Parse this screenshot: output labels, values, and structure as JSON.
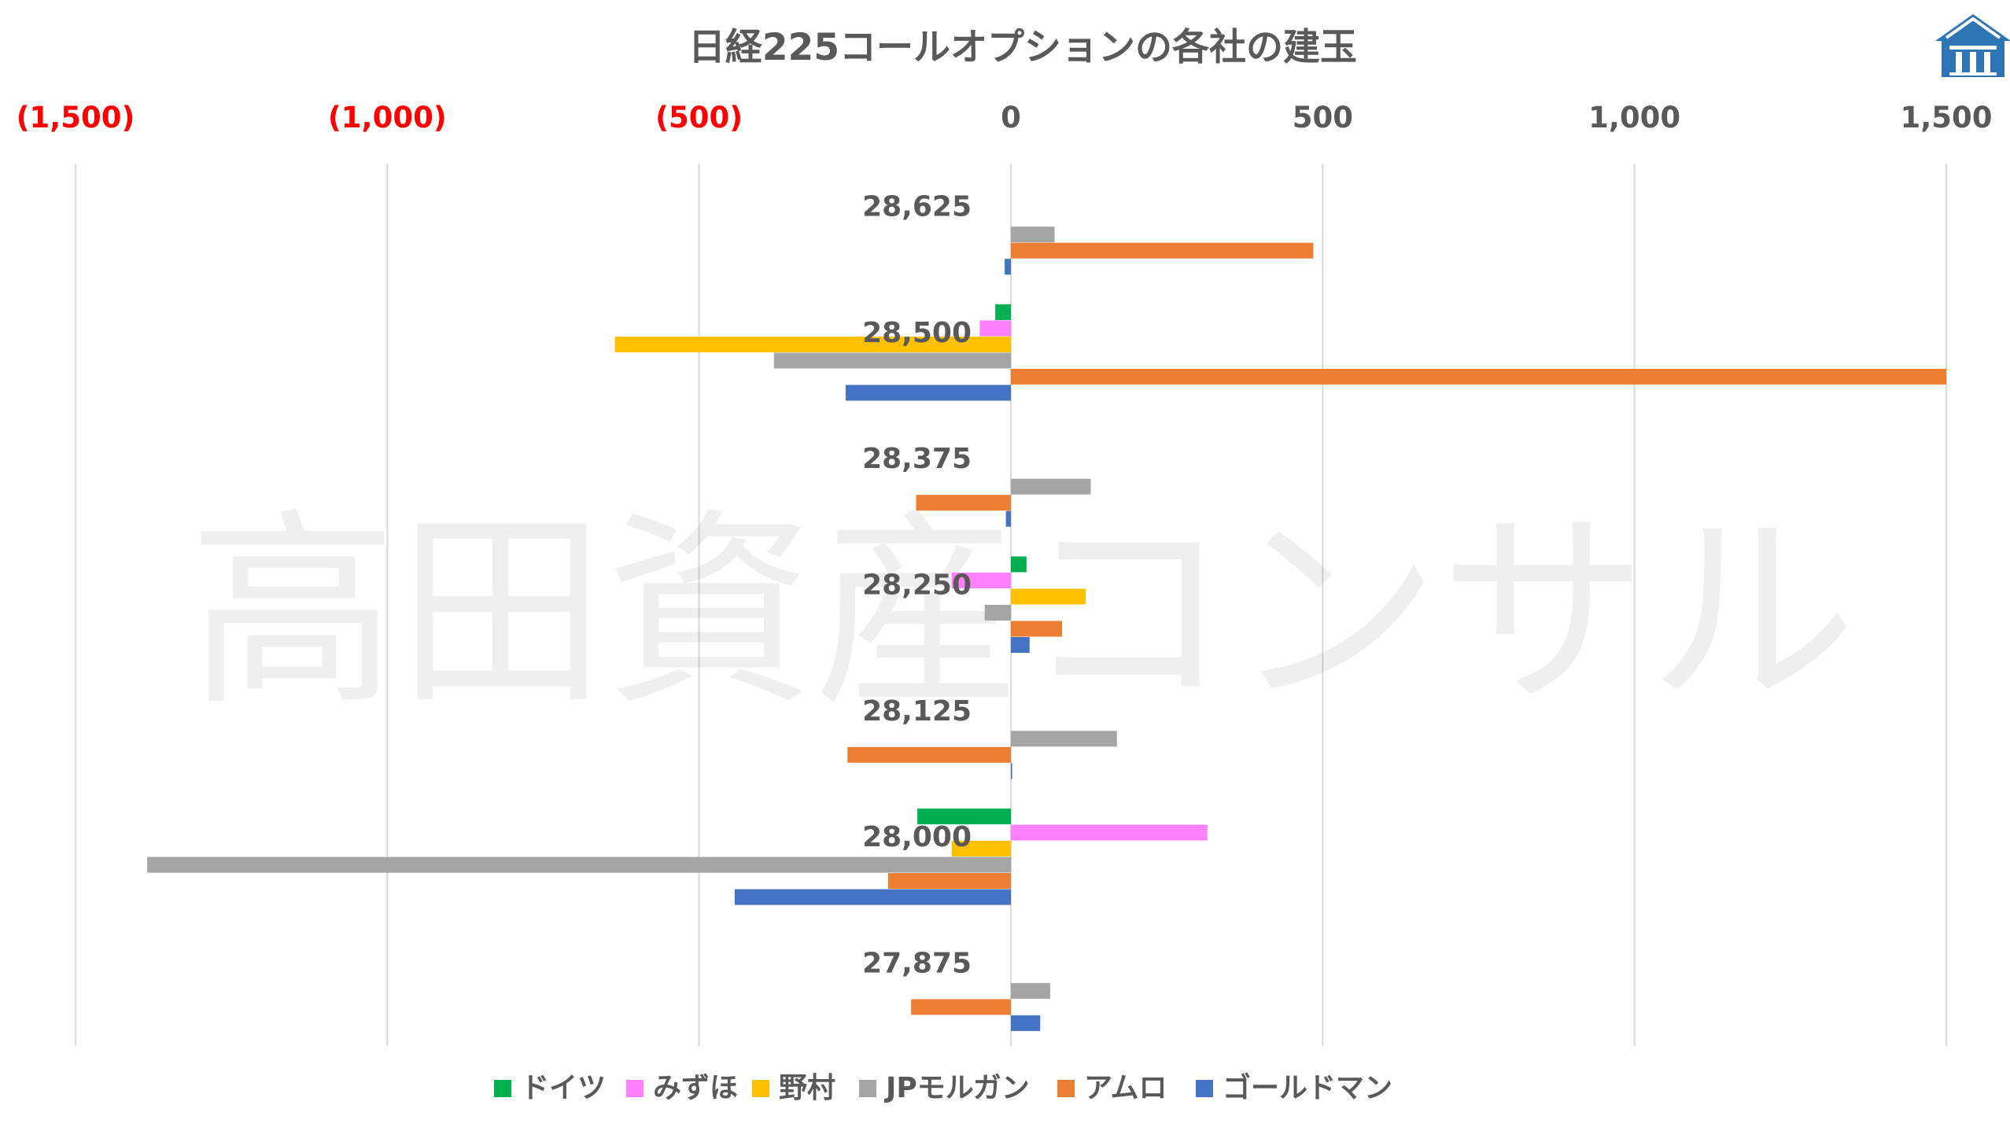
{
  "chart_data": {
    "type": "bar",
    "orientation": "horizontal",
    "title": "日経225コールオプションの各社の建玉",
    "watermark": "高田資産コンサル",
    "xlim": [
      -1500,
      1500
    ],
    "x_ticks": [
      {
        "value": -1500,
        "label": "(1,500)"
      },
      {
        "value": -1000,
        "label": "(1,000)"
      },
      {
        "value": -500,
        "label": "(500)"
      },
      {
        "value": 0,
        "label": "0"
      },
      {
        "value": 500,
        "label": "500"
      },
      {
        "value": 1000,
        "label": "1,000"
      },
      {
        "value": 1500,
        "label": "1,500"
      }
    ],
    "x_axis_position": "top",
    "negative_tick_color": "#ff0000",
    "positive_tick_color": "#595959",
    "grid": true,
    "legend_position": "bottom",
    "categories": [
      "28,625",
      "28,500",
      "28,375",
      "28,250",
      "28,125",
      "28,000",
      "27,875"
    ],
    "series": [
      {
        "name": "ドイツ",
        "color": "#00b050",
        "values": [
          0,
          -25,
          0,
          25,
          0,
          -150,
          0
        ]
      },
      {
        "name": "みずほ",
        "color": "#ff80ff",
        "values": [
          0,
          -50,
          0,
          -95,
          0,
          315,
          0
        ]
      },
      {
        "name": "野村",
        "color": "#ffc000",
        "values": [
          0,
          -635,
          0,
          120,
          0,
          -95,
          0
        ]
      },
      {
        "name": "JPモルガン",
        "color": "#a5a5a5",
        "values": [
          70,
          -380,
          128,
          -42,
          170,
          -1385,
          63
        ]
      },
      {
        "name": "アムロ",
        "color": "#ed7d31",
        "values": [
          485,
          1500,
          -152,
          82,
          -262,
          -197,
          -160
        ]
      },
      {
        "name": "ゴールドマン",
        "color": "#4472c4",
        "values": [
          -10,
          -265,
          -8,
          30,
          2,
          -443,
          47
        ]
      }
    ]
  },
  "logo": {
    "name": "house-logo",
    "color": "#2e75b6"
  }
}
